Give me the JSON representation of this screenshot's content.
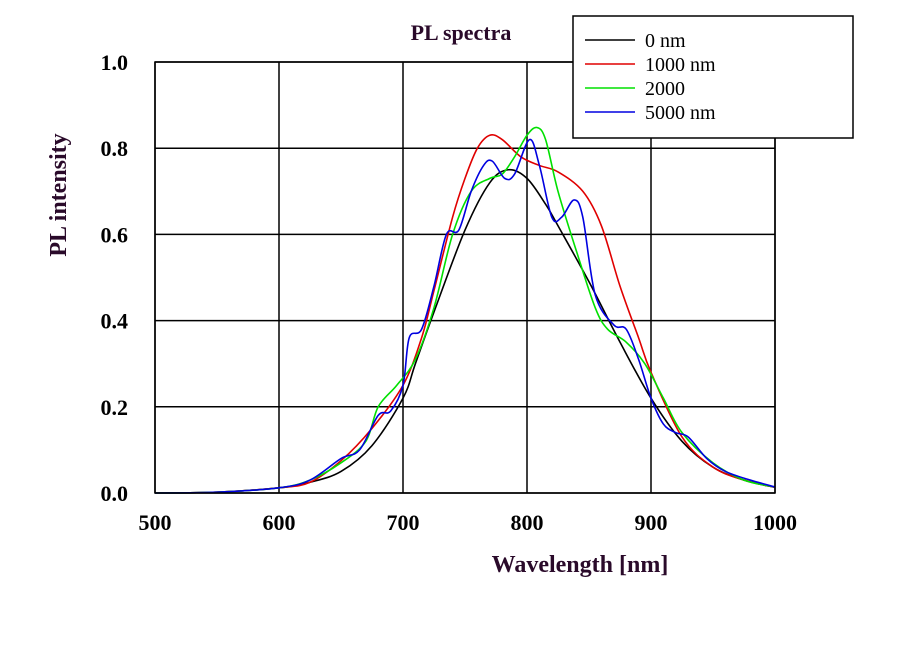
{
  "chart_data": {
    "type": "line",
    "title": "PL spectra",
    "xlabel": "Wavelength [nm]",
    "ylabel": "PL intensity",
    "xlim": [
      500,
      1000
    ],
    "ylim": [
      0.0,
      1.0
    ],
    "x_ticks": [
      "500",
      "600",
      "700",
      "800",
      "900",
      "1000"
    ],
    "y_ticks": [
      "0.0",
      "0.2",
      "0.4",
      "0.6",
      "0.8",
      "1.0"
    ],
    "grid": true,
    "legend_position": "top-right",
    "series": [
      {
        "name": "0 nm",
        "color": "#000000",
        "points": [
          [
            500,
            0.0
          ],
          [
            550,
            0.002
          ],
          [
            600,
            0.012
          ],
          [
            625,
            0.025
          ],
          [
            650,
            0.05
          ],
          [
            675,
            0.11
          ],
          [
            700,
            0.22
          ],
          [
            710,
            0.3
          ],
          [
            725,
            0.42
          ],
          [
            750,
            0.61
          ],
          [
            770,
            0.72
          ],
          [
            785,
            0.75
          ],
          [
            800,
            0.73
          ],
          [
            815,
            0.67
          ],
          [
            825,
            0.62
          ],
          [
            850,
            0.49
          ],
          [
            875,
            0.35
          ],
          [
            900,
            0.22
          ],
          [
            925,
            0.12
          ],
          [
            950,
            0.06
          ],
          [
            975,
            0.03
          ],
          [
            1000,
            0.013
          ]
        ]
      },
      {
        "name": "1000 nm",
        "color": "#e00000",
        "points": [
          [
            500,
            0.0
          ],
          [
            550,
            0.002
          ],
          [
            600,
            0.012
          ],
          [
            625,
            0.025
          ],
          [
            650,
            0.075
          ],
          [
            675,
            0.15
          ],
          [
            700,
            0.25
          ],
          [
            715,
            0.36
          ],
          [
            725,
            0.47
          ],
          [
            740,
            0.64
          ],
          [
            750,
            0.73
          ],
          [
            760,
            0.8
          ],
          [
            770,
            0.83
          ],
          [
            780,
            0.82
          ],
          [
            795,
            0.78
          ],
          [
            810,
            0.76
          ],
          [
            825,
            0.745
          ],
          [
            845,
            0.7
          ],
          [
            860,
            0.62
          ],
          [
            875,
            0.48
          ],
          [
            890,
            0.36
          ],
          [
            900,
            0.28
          ],
          [
            925,
            0.13
          ],
          [
            950,
            0.06
          ],
          [
            975,
            0.03
          ],
          [
            1000,
            0.013
          ]
        ]
      },
      {
        "name": "2000",
        "color": "#00e000",
        "points": [
          [
            500,
            0.0
          ],
          [
            550,
            0.002
          ],
          [
            600,
            0.012
          ],
          [
            625,
            0.03
          ],
          [
            650,
            0.07
          ],
          [
            670,
            0.12
          ],
          [
            680,
            0.2
          ],
          [
            695,
            0.25
          ],
          [
            710,
            0.31
          ],
          [
            725,
            0.43
          ],
          [
            740,
            0.6
          ],
          [
            755,
            0.7
          ],
          [
            770,
            0.73
          ],
          [
            780,
            0.74
          ],
          [
            790,
            0.78
          ],
          [
            800,
            0.83
          ],
          [
            808,
            0.848
          ],
          [
            815,
            0.82
          ],
          [
            825,
            0.7
          ],
          [
            840,
            0.56
          ],
          [
            855,
            0.43
          ],
          [
            865,
            0.38
          ],
          [
            880,
            0.35
          ],
          [
            895,
            0.3
          ],
          [
            910,
            0.22
          ],
          [
            925,
            0.14
          ],
          [
            950,
            0.07
          ],
          [
            975,
            0.03
          ],
          [
            1000,
            0.014
          ]
        ]
      },
      {
        "name": "5000 nm",
        "color": "#0000e0",
        "points": [
          [
            500,
            0.0
          ],
          [
            550,
            0.002
          ],
          [
            600,
            0.012
          ],
          [
            625,
            0.03
          ],
          [
            650,
            0.08
          ],
          [
            665,
            0.1
          ],
          [
            680,
            0.18
          ],
          [
            690,
            0.19
          ],
          [
            700,
            0.25
          ],
          [
            705,
            0.36
          ],
          [
            715,
            0.38
          ],
          [
            725,
            0.48
          ],
          [
            735,
            0.6
          ],
          [
            745,
            0.61
          ],
          [
            755,
            0.7
          ],
          [
            765,
            0.76
          ],
          [
            772,
            0.77
          ],
          [
            782,
            0.73
          ],
          [
            790,
            0.74
          ],
          [
            802,
            0.82
          ],
          [
            810,
            0.76
          ],
          [
            820,
            0.64
          ],
          [
            828,
            0.64
          ],
          [
            838,
            0.68
          ],
          [
            845,
            0.64
          ],
          [
            855,
            0.46
          ],
          [
            870,
            0.39
          ],
          [
            880,
            0.38
          ],
          [
            890,
            0.31
          ],
          [
            900,
            0.22
          ],
          [
            910,
            0.16
          ],
          [
            920,
            0.14
          ],
          [
            930,
            0.13
          ],
          [
            945,
            0.08
          ],
          [
            960,
            0.05
          ],
          [
            980,
            0.03
          ],
          [
            1000,
            0.014
          ]
        ]
      }
    ]
  }
}
